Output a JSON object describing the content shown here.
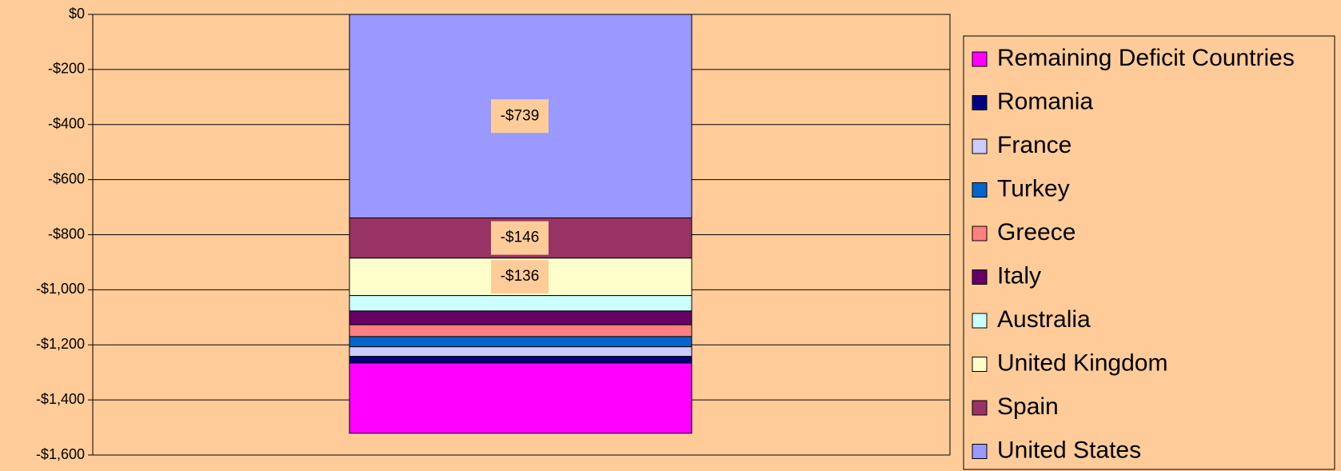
{
  "chart_data": {
    "type": "stacked_bar",
    "categories": [
      null
    ],
    "series": [
      {
        "name": "United States",
        "color": "#9999ff",
        "values": [
          -739
        ],
        "value_labels": [
          "-$739"
        ]
      },
      {
        "name": "Spain",
        "color": "#993366",
        "values": [
          -146
        ],
        "value_labels": [
          "-$146"
        ]
      },
      {
        "name": "United Kingdom",
        "color": "#ffffcc",
        "values": [
          -136
        ],
        "value_labels": [
          "-$136"
        ]
      },
      {
        "name": "Australia",
        "color": "#ccffff",
        "values": [
          -56
        ]
      },
      {
        "name": "Italy",
        "color": "#660066",
        "values": [
          -50
        ]
      },
      {
        "name": "Greece",
        "color": "#ff8080",
        "values": [
          -43
        ]
      },
      {
        "name": "Turkey",
        "color": "#0066cc",
        "values": [
          -37
        ]
      },
      {
        "name": "France",
        "color": "#ccccff",
        "values": [
          -35
        ]
      },
      {
        "name": "Romania",
        "color": "#000080",
        "values": [
          -24
        ]
      },
      {
        "name": "Remaining Deficit Countries",
        "color": "#ff00ff",
        "values": [
          -255
        ]
      }
    ],
    "ylim": [
      -1600,
      0
    ],
    "yticks": [
      {
        "value": 0,
        "label": "$0"
      },
      {
        "value": -200,
        "label": "-$200"
      },
      {
        "value": -400,
        "label": "-$400"
      },
      {
        "value": -600,
        "label": "-$600"
      },
      {
        "value": -800,
        "label": "-$800"
      },
      {
        "value": -1000,
        "label": "-$1,000"
      },
      {
        "value": -1200,
        "label": "-$1,200"
      },
      {
        "value": -1400,
        "label": "-$1,400"
      },
      {
        "value": -1600,
        "label": "-$1,600"
      }
    ],
    "grid": true,
    "legend": "right"
  }
}
